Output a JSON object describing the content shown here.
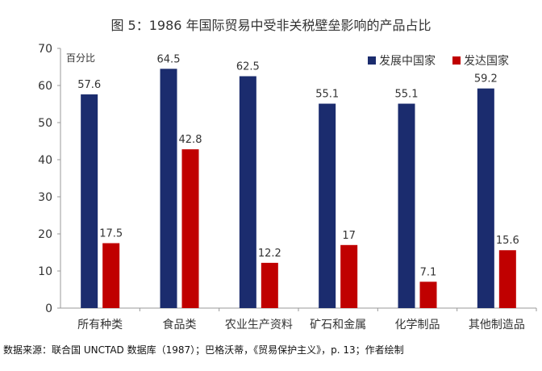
{
  "chart_data": {
    "type": "bar",
    "title": "图 5：1986 年国际贸易中受非关税壁垒影响的产品占比",
    "ylabel": "百分比",
    "xlabel": "",
    "ylim": [
      0,
      70
    ],
    "yticks": [
      "0",
      "10",
      "20",
      "30",
      "40",
      "50",
      "60",
      "70"
    ],
    "grid": false,
    "legend_position": "top-right",
    "categories": [
      "所有种类",
      "食品类",
      "农业生产资料",
      "矿石和金属",
      "化学制品",
      "其他制造品"
    ],
    "series": [
      {
        "name": "发展中国家",
        "color": "#1b2c6e",
        "values": [
          57.6,
          64.5,
          62.5,
          55.1,
          55.1,
          59.2
        ],
        "labels": [
          "57.6",
          "64.5",
          "62.5",
          "55.1",
          "55.1",
          "59.2"
        ]
      },
      {
        "name": "发达国家",
        "color": "#c00000",
        "values": [
          17.5,
          42.8,
          12.2,
          17,
          7.1,
          15.6
        ],
        "labels": [
          "17.5",
          "42.8",
          "12.2",
          "17",
          "7.1",
          "15.6"
        ]
      }
    ]
  },
  "source_note": "数据来源：联合国 UNCTAD 数据库（1987）；巴格沃蒂，《贸易保护主义》，p. 13；作者绘制"
}
